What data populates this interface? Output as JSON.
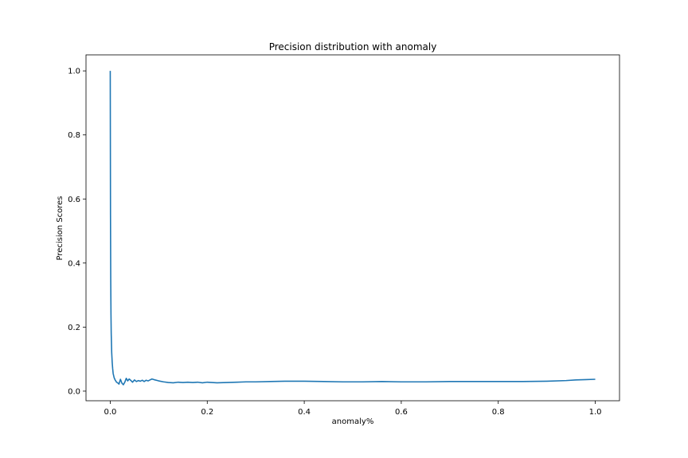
{
  "chart_data": {
    "type": "line",
    "title": "Precision distribution with anomaly",
    "xlabel": "anomaly%",
    "ylabel": "Precision Scores",
    "xlim": [
      -0.05,
      1.05
    ],
    "ylim": [
      -0.03,
      1.05
    ],
    "grid": false,
    "legend": "none",
    "xticks": [
      0.0,
      0.2,
      0.4,
      0.6,
      0.8,
      1.0
    ],
    "xtick_labels": [
      "0.0",
      "0.2",
      "0.4",
      "0.6",
      "0.8",
      "1.0"
    ],
    "yticks": [
      0.0,
      0.2,
      0.4,
      0.6,
      0.8,
      1.0
    ],
    "ytick_labels": [
      "0.0",
      "0.2",
      "0.4",
      "0.6",
      "0.8",
      "1.0"
    ],
    "line_color": "#1f77b4",
    "series": [
      {
        "x": [
          0.0,
          0.0005,
          0.001,
          0.0015,
          0.002,
          0.003,
          0.004,
          0.005,
          0.006,
          0.008,
          0.01,
          0.013,
          0.016,
          0.018,
          0.021,
          0.024,
          0.027,
          0.03,
          0.033,
          0.036,
          0.039,
          0.042,
          0.046,
          0.05,
          0.054,
          0.058,
          0.062,
          0.066,
          0.07,
          0.074,
          0.078,
          0.082,
          0.086,
          0.09,
          0.1,
          0.11,
          0.12,
          0.13,
          0.14,
          0.15,
          0.16,
          0.17,
          0.18,
          0.19,
          0.2,
          0.22,
          0.24,
          0.26,
          0.28,
          0.3,
          0.33,
          0.36,
          0.4,
          0.44,
          0.48,
          0.52,
          0.56,
          0.6,
          0.65,
          0.7,
          0.75,
          0.8,
          0.85,
          0.9,
          0.94,
          0.96,
          0.98,
          1.0
        ],
        "y": [
          1.0,
          0.55,
          0.35,
          0.24,
          0.18,
          0.12,
          0.09,
          0.07,
          0.055,
          0.042,
          0.035,
          0.028,
          0.025,
          0.022,
          0.037,
          0.025,
          0.02,
          0.028,
          0.04,
          0.032,
          0.038,
          0.034,
          0.028,
          0.035,
          0.03,
          0.033,
          0.031,
          0.034,
          0.03,
          0.034,
          0.032,
          0.035,
          0.038,
          0.036,
          0.032,
          0.029,
          0.027,
          0.026,
          0.028,
          0.027,
          0.028,
          0.027,
          0.028,
          0.026,
          0.028,
          0.026,
          0.027,
          0.028,
          0.029,
          0.029,
          0.03,
          0.031,
          0.031,
          0.03,
          0.029,
          0.029,
          0.03,
          0.029,
          0.029,
          0.03,
          0.03,
          0.03,
          0.03,
          0.031,
          0.033,
          0.035,
          0.036,
          0.037
        ]
      }
    ]
  }
}
